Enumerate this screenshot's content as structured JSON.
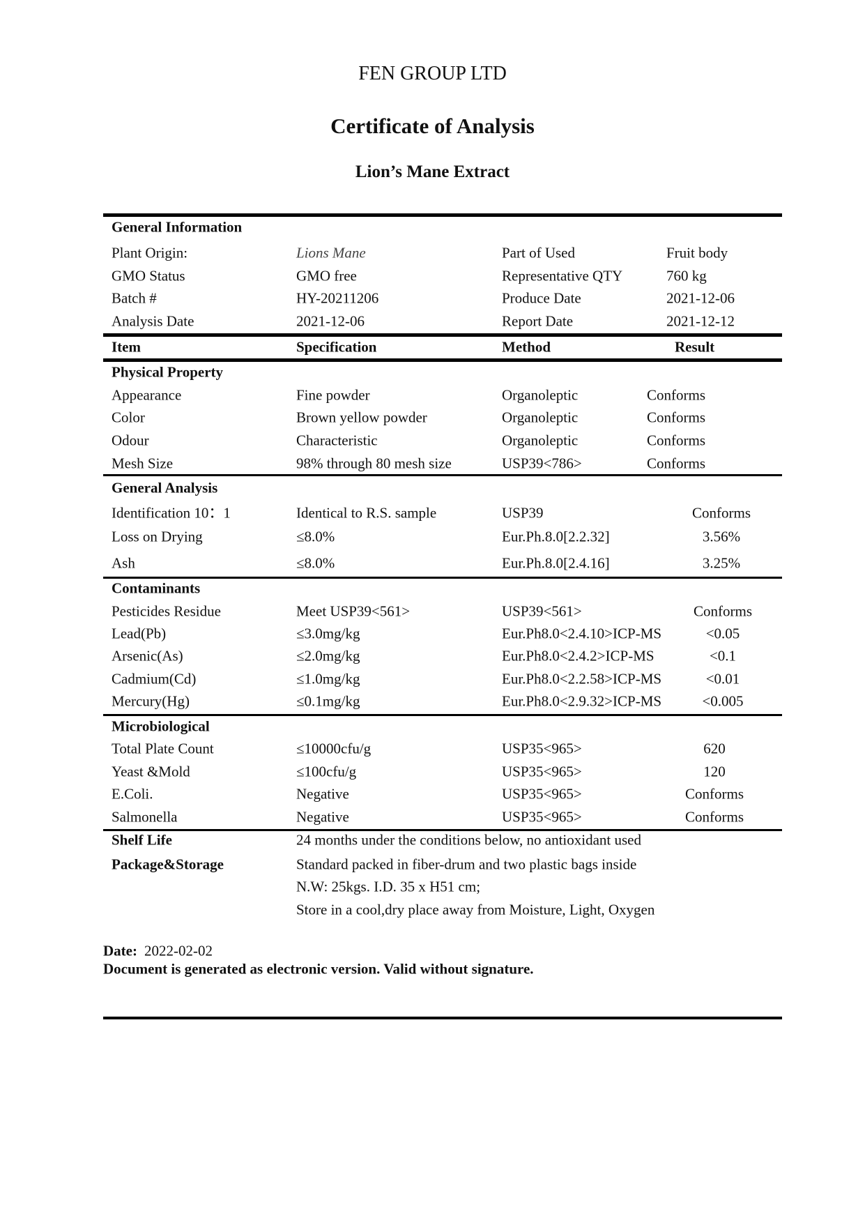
{
  "header": {
    "company": "FEN GROUP LTD",
    "title": "Certificate of Analysis",
    "product": "Lion’s Mane Extract"
  },
  "general_information": {
    "title": "General Information",
    "rows": [
      [
        "Plant Origin:",
        "Lions Mane",
        "Part of Used",
        "Fruit body"
      ],
      [
        "GMO Status",
        "GMO free",
        "Representative QTY",
        "760 kg"
      ],
      [
        "Batch #",
        "HY-20211206",
        "Produce Date",
        "2021-12-06"
      ],
      [
        "Analysis Date",
        "2021-12-06",
        "Report Date",
        "2021-12-12"
      ]
    ]
  },
  "columns": [
    "Item",
    "Specification",
    "Method",
    "Result"
  ],
  "sections": [
    {
      "title": "Physical Property",
      "rows": [
        [
          "Appearance",
          "Fine powder",
          "Organoleptic",
          "Conforms"
        ],
        [
          "Color",
          "Brown yellow powder",
          "Organoleptic",
          "Conforms"
        ],
        [
          "Odour",
          "Characteristic",
          "Organoleptic",
          "Conforms"
        ],
        [
          "Mesh Size",
          "98% through 80 mesh size",
          "USP39<786>",
          "Conforms"
        ]
      ]
    },
    {
      "title": "General Analysis",
      "rows": [
        [
          "Identification 10：1",
          "Identical to R.S. sample",
          "USP39",
          "Conforms"
        ],
        [
          "Loss on Drying",
          "≤8.0%",
          "Eur.Ph.8.0[2.2.32]",
          "3.56%"
        ],
        [
          "Ash",
          "≤8.0%",
          "Eur.Ph.8.0[2.4.16]",
          "3.25%"
        ]
      ]
    },
    {
      "title": "Contaminants",
      "rows": [
        [
          "Pesticides Residue",
          "Meet USP39<561>",
          "USP39<561>",
          "Conforms"
        ],
        [
          "Lead(Pb)",
          "≤3.0mg/kg",
          "Eur.Ph8.0<2.4.10>ICP-MS",
          "<0.05"
        ],
        [
          "Arsenic(As)",
          "≤2.0mg/kg",
          "Eur.Ph8.0<2.4.2>ICP-MS",
          "<0.1"
        ],
        [
          "Cadmium(Cd)",
          "≤1.0mg/kg",
          "Eur.Ph8.0<2.2.58>ICP-MS",
          "<0.01"
        ],
        [
          "Mercury(Hg)",
          "≤0.1mg/kg",
          "Eur.Ph8.0<2.9.32>ICP-MS",
          "<0.005"
        ]
      ]
    },
    {
      "title": "Microbiological",
      "rows": [
        [
          "Total Plate Count",
          "≤10000cfu/g",
          "USP35<965>",
          "620"
        ],
        [
          "Yeast &Mold",
          "≤100cfu/g",
          "USP35<965>",
          "120"
        ],
        [
          "E.Coli.",
          "Negative",
          "USP35<965>",
          "Conforms"
        ],
        [
          "Salmonella",
          "Negative",
          "USP35<965>",
          "Conforms"
        ]
      ]
    }
  ],
  "shelf_life": {
    "label": "Shelf Life",
    "value": "24 months under the conditions below, no antioxidant used"
  },
  "package_storage": {
    "label": "Package&Storage",
    "lines": [
      "Standard packed in fiber-drum and two plastic bags inside",
      "N.W: 25kgs. I.D. 35 x H51 cm;",
      "Store in a cool,dry place away from Moisture, Light, Oxygen"
    ]
  },
  "footer": {
    "date_label": "Date:",
    "date_value": "2022-02-02",
    "note": "Document is generated as electronic version. Valid without signature."
  }
}
